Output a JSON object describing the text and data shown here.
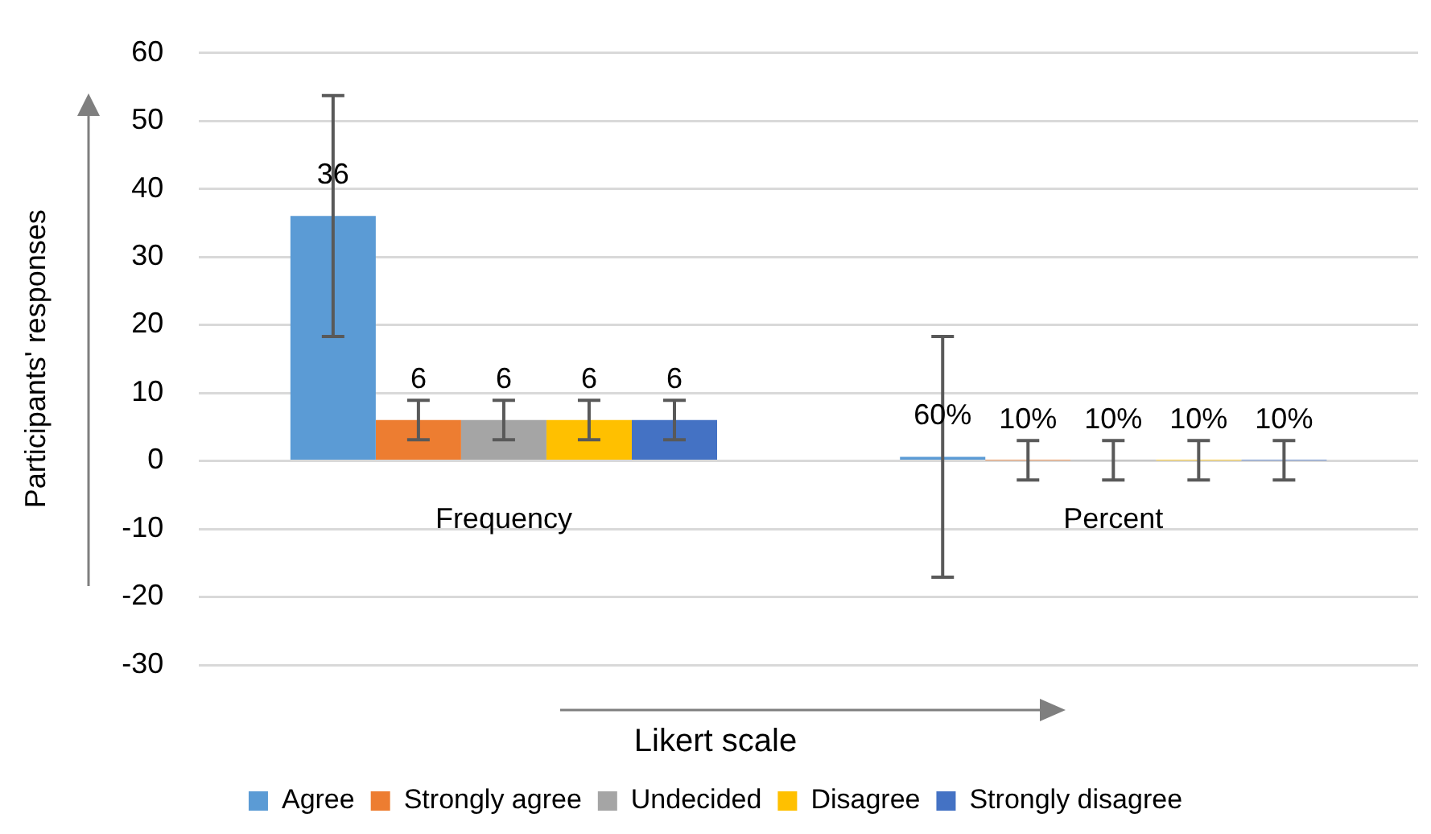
{
  "chart_data": {
    "type": "bar",
    "xlabel": "Likert scale",
    "ylabel": "Participants' responses",
    "categories": [
      "Frequency",
      "Percent"
    ],
    "series": [
      {
        "name": "Agree",
        "color": "#5b9bd5",
        "values": [
          36,
          0.6
        ],
        "errors": [
          17.7,
          17.7
        ],
        "value_labels": [
          "36",
          "60%"
        ]
      },
      {
        "name": "Strongly agree",
        "color": "#ed7d31",
        "values": [
          6,
          0.1
        ],
        "errors": [
          2.9,
          2.9
        ],
        "value_labels": [
          "6",
          "10%"
        ]
      },
      {
        "name": "Undecided",
        "color": "#a5a5a5",
        "values": [
          6,
          0.1
        ],
        "errors": [
          2.9,
          2.9
        ],
        "value_labels": [
          "6",
          "10%"
        ]
      },
      {
        "name": "Disagree",
        "color": "#ffc000",
        "values": [
          6,
          0.1
        ],
        "errors": [
          2.9,
          2.9
        ],
        "value_labels": [
          "6",
          "10%"
        ]
      },
      {
        "name": "Strongly disagree",
        "color": "#4472c4",
        "values": [
          6,
          0.1
        ],
        "errors": [
          2.9,
          2.9
        ],
        "value_labels": [
          "6",
          "10%"
        ]
      }
    ],
    "ylim": [
      -30,
      60
    ],
    "yticks": [
      -30,
      -20,
      -10,
      0,
      10,
      20,
      30,
      40,
      50,
      60
    ],
    "grid": "y",
    "legend": "bottom"
  }
}
